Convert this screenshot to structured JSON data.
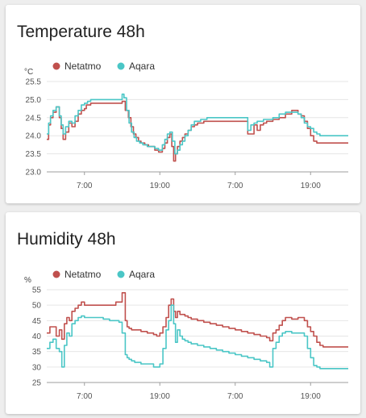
{
  "cards": [
    {
      "title": "Temperature 48h"
    },
    {
      "title": "Humidity 48h"
    }
  ],
  "colors": {
    "netatmo": "#c0504d",
    "aqara": "#4ac6c6",
    "grid": "#e6e6e6",
    "axis": "#9e9e9e"
  },
  "chart_data": [
    {
      "type": "line",
      "title": "Temperature 48h",
      "ylabel": "°C",
      "ylim": [
        23.0,
        25.5
      ],
      "yticks": [
        "23.0",
        "23.5",
        "24.0",
        "24.5",
        "25.0",
        "25.5"
      ],
      "xlim": [
        0,
        48
      ],
      "xticks": [
        {
          "x": 6,
          "label": "7:00"
        },
        {
          "x": 18,
          "label": "19:00"
        },
        {
          "x": 30,
          "label": "7:00"
        },
        {
          "x": 42,
          "label": "19:00"
        }
      ],
      "grid": true,
      "legend": "top-left",
      "series": [
        {
          "name": "Netatmo",
          "color": "#c0504d",
          "step": true,
          "x": [
            0.0,
            0.3,
            0.6,
            1.0,
            1.5,
            2.0,
            2.3,
            2.6,
            3.0,
            3.5,
            4.0,
            4.5,
            5.0,
            5.5,
            6.0,
            6.3,
            7.0,
            8.0,
            9.0,
            10.0,
            11.0,
            12.0,
            12.5,
            13.0,
            13.4,
            13.8,
            14.2,
            14.6,
            15.0,
            15.6,
            16.2,
            16.8,
            17.2,
            17.8,
            18.4,
            18.8,
            19.2,
            19.6,
            19.9,
            20.2,
            20.5,
            20.8,
            21.2,
            21.6,
            22.0,
            22.5,
            23.0,
            23.5,
            24.0,
            24.5,
            25.0,
            26.0,
            27.0,
            28.0,
            29.0,
            30.0,
            31.0,
            32.0,
            33.0,
            33.5,
            34.0,
            34.5,
            35.0,
            36.0,
            37.0,
            38.0,
            39.0,
            40.0,
            40.5,
            41.0,
            41.5,
            42.0,
            42.5,
            43.0,
            43.5,
            44.0
          ],
          "values": [
            23.9,
            24.3,
            24.5,
            24.65,
            24.8,
            24.5,
            24.2,
            23.9,
            24.1,
            24.35,
            24.25,
            24.4,
            24.6,
            24.7,
            24.75,
            24.85,
            24.9,
            24.9,
            24.9,
            24.9,
            24.9,
            24.95,
            24.7,
            24.5,
            24.25,
            24.05,
            23.95,
            23.85,
            23.8,
            23.75,
            23.7,
            23.7,
            23.6,
            23.55,
            23.65,
            23.8,
            23.95,
            24.05,
            23.7,
            23.3,
            23.5,
            23.7,
            23.85,
            23.95,
            24.05,
            24.15,
            24.25,
            24.3,
            24.35,
            24.35,
            24.4,
            24.4,
            24.4,
            24.4,
            24.4,
            24.4,
            24.4,
            24.05,
            24.3,
            24.15,
            24.3,
            24.35,
            24.4,
            24.45,
            24.5,
            24.6,
            24.7,
            24.6,
            24.55,
            24.4,
            24.2,
            24.0,
            23.85,
            23.8,
            23.8,
            23.8
          ]
        },
        {
          "name": "Aqara",
          "color": "#4ac6c6",
          "step": true,
          "x": [
            0.0,
            0.3,
            0.6,
            1.0,
            1.5,
            2.0,
            2.3,
            2.6,
            3.0,
            3.5,
            4.0,
            4.5,
            5.0,
            5.5,
            6.0,
            6.5,
            7.0,
            8.0,
            9.0,
            10.0,
            11.0,
            12.0,
            12.3,
            12.7,
            13.1,
            13.5,
            13.9,
            14.3,
            14.8,
            15.3,
            16.0,
            16.6,
            17.2,
            17.8,
            18.4,
            18.8,
            19.2,
            19.6,
            20.0,
            20.4,
            20.8,
            21.2,
            21.6,
            22.0,
            22.5,
            23.0,
            23.5,
            24.0,
            24.5,
            25.0,
            25.5,
            26.0,
            27.0,
            28.0,
            29.0,
            30.0,
            31.0,
            32.0,
            32.5,
            33.0,
            33.5,
            34.0,
            34.5,
            35.0,
            36.0,
            37.0,
            38.0,
            39.0,
            40.0,
            40.5,
            41.0,
            41.5,
            42.0,
            42.5,
            43.0,
            43.5,
            44.0
          ],
          "values": [
            24.05,
            24.35,
            24.55,
            24.7,
            24.8,
            24.55,
            24.3,
            24.05,
            24.25,
            24.4,
            24.35,
            24.55,
            24.7,
            24.85,
            24.9,
            24.95,
            25.0,
            25.0,
            25.0,
            25.0,
            25.0,
            25.15,
            25.05,
            24.7,
            24.35,
            24.1,
            23.95,
            23.85,
            23.8,
            23.75,
            23.7,
            23.7,
            23.65,
            23.6,
            23.75,
            23.9,
            24.05,
            24.1,
            23.85,
            23.5,
            23.6,
            23.75,
            23.85,
            24.0,
            24.15,
            24.3,
            24.4,
            24.4,
            24.45,
            24.45,
            24.5,
            24.5,
            24.5,
            24.5,
            24.5,
            24.5,
            24.5,
            24.15,
            24.3,
            24.35,
            24.4,
            24.4,
            24.45,
            24.45,
            24.5,
            24.6,
            24.65,
            24.65,
            24.6,
            24.5,
            24.35,
            24.25,
            24.2,
            24.1,
            24.05,
            24.0,
            24.0
          ]
        }
      ]
    },
    {
      "type": "line",
      "title": "Humidity 48h",
      "ylabel": "%",
      "ylim": [
        25,
        55
      ],
      "yticks": [
        "25",
        "30",
        "35",
        "40",
        "45",
        "50",
        "55"
      ],
      "xlim": [
        0,
        48
      ],
      "xticks": [
        {
          "x": 6,
          "label": "7:00"
        },
        {
          "x": 18,
          "label": "19:00"
        },
        {
          "x": 30,
          "label": "7:00"
        },
        {
          "x": 42,
          "label": "19:00"
        }
      ],
      "grid": true,
      "legend": "top-left",
      "series": [
        {
          "name": "Netatmo",
          "color": "#c0504d",
          "step": true,
          "x": [
            0.0,
            0.5,
            1.0,
            1.5,
            2.0,
            2.4,
            2.8,
            3.2,
            3.6,
            4.0,
            4.5,
            5.0,
            5.5,
            6.0,
            6.5,
            7.0,
            8.0,
            9.0,
            10.0,
            11.0,
            12.0,
            12.5,
            12.8,
            13.1,
            13.5,
            14.0,
            15.0,
            16.0,
            17.0,
            17.5,
            18.0,
            18.5,
            19.0,
            19.4,
            19.8,
            20.2,
            20.5,
            20.8,
            21.2,
            21.6,
            22.0,
            22.5,
            23.0,
            24.0,
            25.0,
            26.0,
            27.0,
            28.0,
            29.0,
            30.0,
            31.0,
            32.0,
            33.0,
            34.0,
            35.0,
            35.5,
            36.0,
            36.5,
            37.0,
            37.5,
            38.0,
            38.5,
            39.0,
            40.0,
            41.0,
            41.5,
            42.0,
            42.5,
            43.0,
            43.5,
            44.0
          ],
          "values": [
            41,
            43,
            43,
            40,
            42,
            39,
            44,
            46,
            45,
            48,
            49,
            50,
            51,
            50,
            50,
            50,
            50,
            50,
            50,
            51,
            54,
            45,
            43,
            42.5,
            42,
            42,
            41.5,
            41,
            40.5,
            40,
            41,
            43,
            46,
            50,
            52,
            48,
            46,
            48,
            47,
            47,
            46.5,
            46,
            45.5,
            45,
            44.5,
            44,
            43.5,
            43,
            42.5,
            42,
            41.5,
            41,
            40.5,
            40,
            39.5,
            38.5,
            41,
            42,
            43.5,
            45,
            46,
            46,
            45.5,
            46,
            45,
            43,
            41.5,
            40,
            38,
            37,
            36.5
          ]
        },
        {
          "name": "Aqara",
          "color": "#4ac6c6",
          "step": true,
          "x": [
            0.0,
            0.5,
            1.0,
            1.5,
            2.0,
            2.4,
            2.8,
            3.2,
            3.6,
            4.0,
            4.5,
            5.0,
            5.5,
            6.0,
            7.0,
            8.0,
            9.0,
            10.0,
            11.0,
            11.5,
            12.0,
            12.5,
            12.8,
            13.1,
            13.5,
            14.0,
            15.0,
            16.0,
            17.0,
            17.5,
            18.0,
            18.5,
            19.0,
            19.4,
            19.8,
            20.2,
            20.5,
            20.8,
            21.2,
            21.6,
            22.0,
            22.5,
            23.0,
            24.0,
            25.0,
            26.0,
            27.0,
            28.0,
            29.0,
            30.0,
            31.0,
            32.0,
            33.0,
            34.0,
            35.0,
            35.5,
            36.0,
            36.5,
            37.0,
            37.5,
            38.0,
            38.5,
            39.0,
            40.0,
            41.0,
            41.5,
            42.0,
            42.5,
            43.0,
            43.5,
            44.0
          ],
          "values": [
            36,
            38,
            39,
            36,
            35,
            30,
            37,
            41,
            40,
            44,
            45,
            46,
            46.5,
            46,
            46,
            46,
            45.5,
            45,
            45,
            44.5,
            41,
            34,
            33,
            32.5,
            32,
            31.5,
            31,
            31,
            30,
            30,
            31,
            36,
            42,
            45,
            50,
            44,
            38,
            42,
            40,
            39,
            38.5,
            38,
            37.5,
            37,
            36.5,
            36,
            35.5,
            35,
            34.5,
            34,
            33.5,
            33,
            32.5,
            32,
            31.5,
            30,
            36,
            38,
            40,
            41,
            41.5,
            41.5,
            41,
            41,
            40,
            36,
            33,
            30.5,
            30,
            29.5,
            29.5
          ]
        }
      ]
    }
  ]
}
